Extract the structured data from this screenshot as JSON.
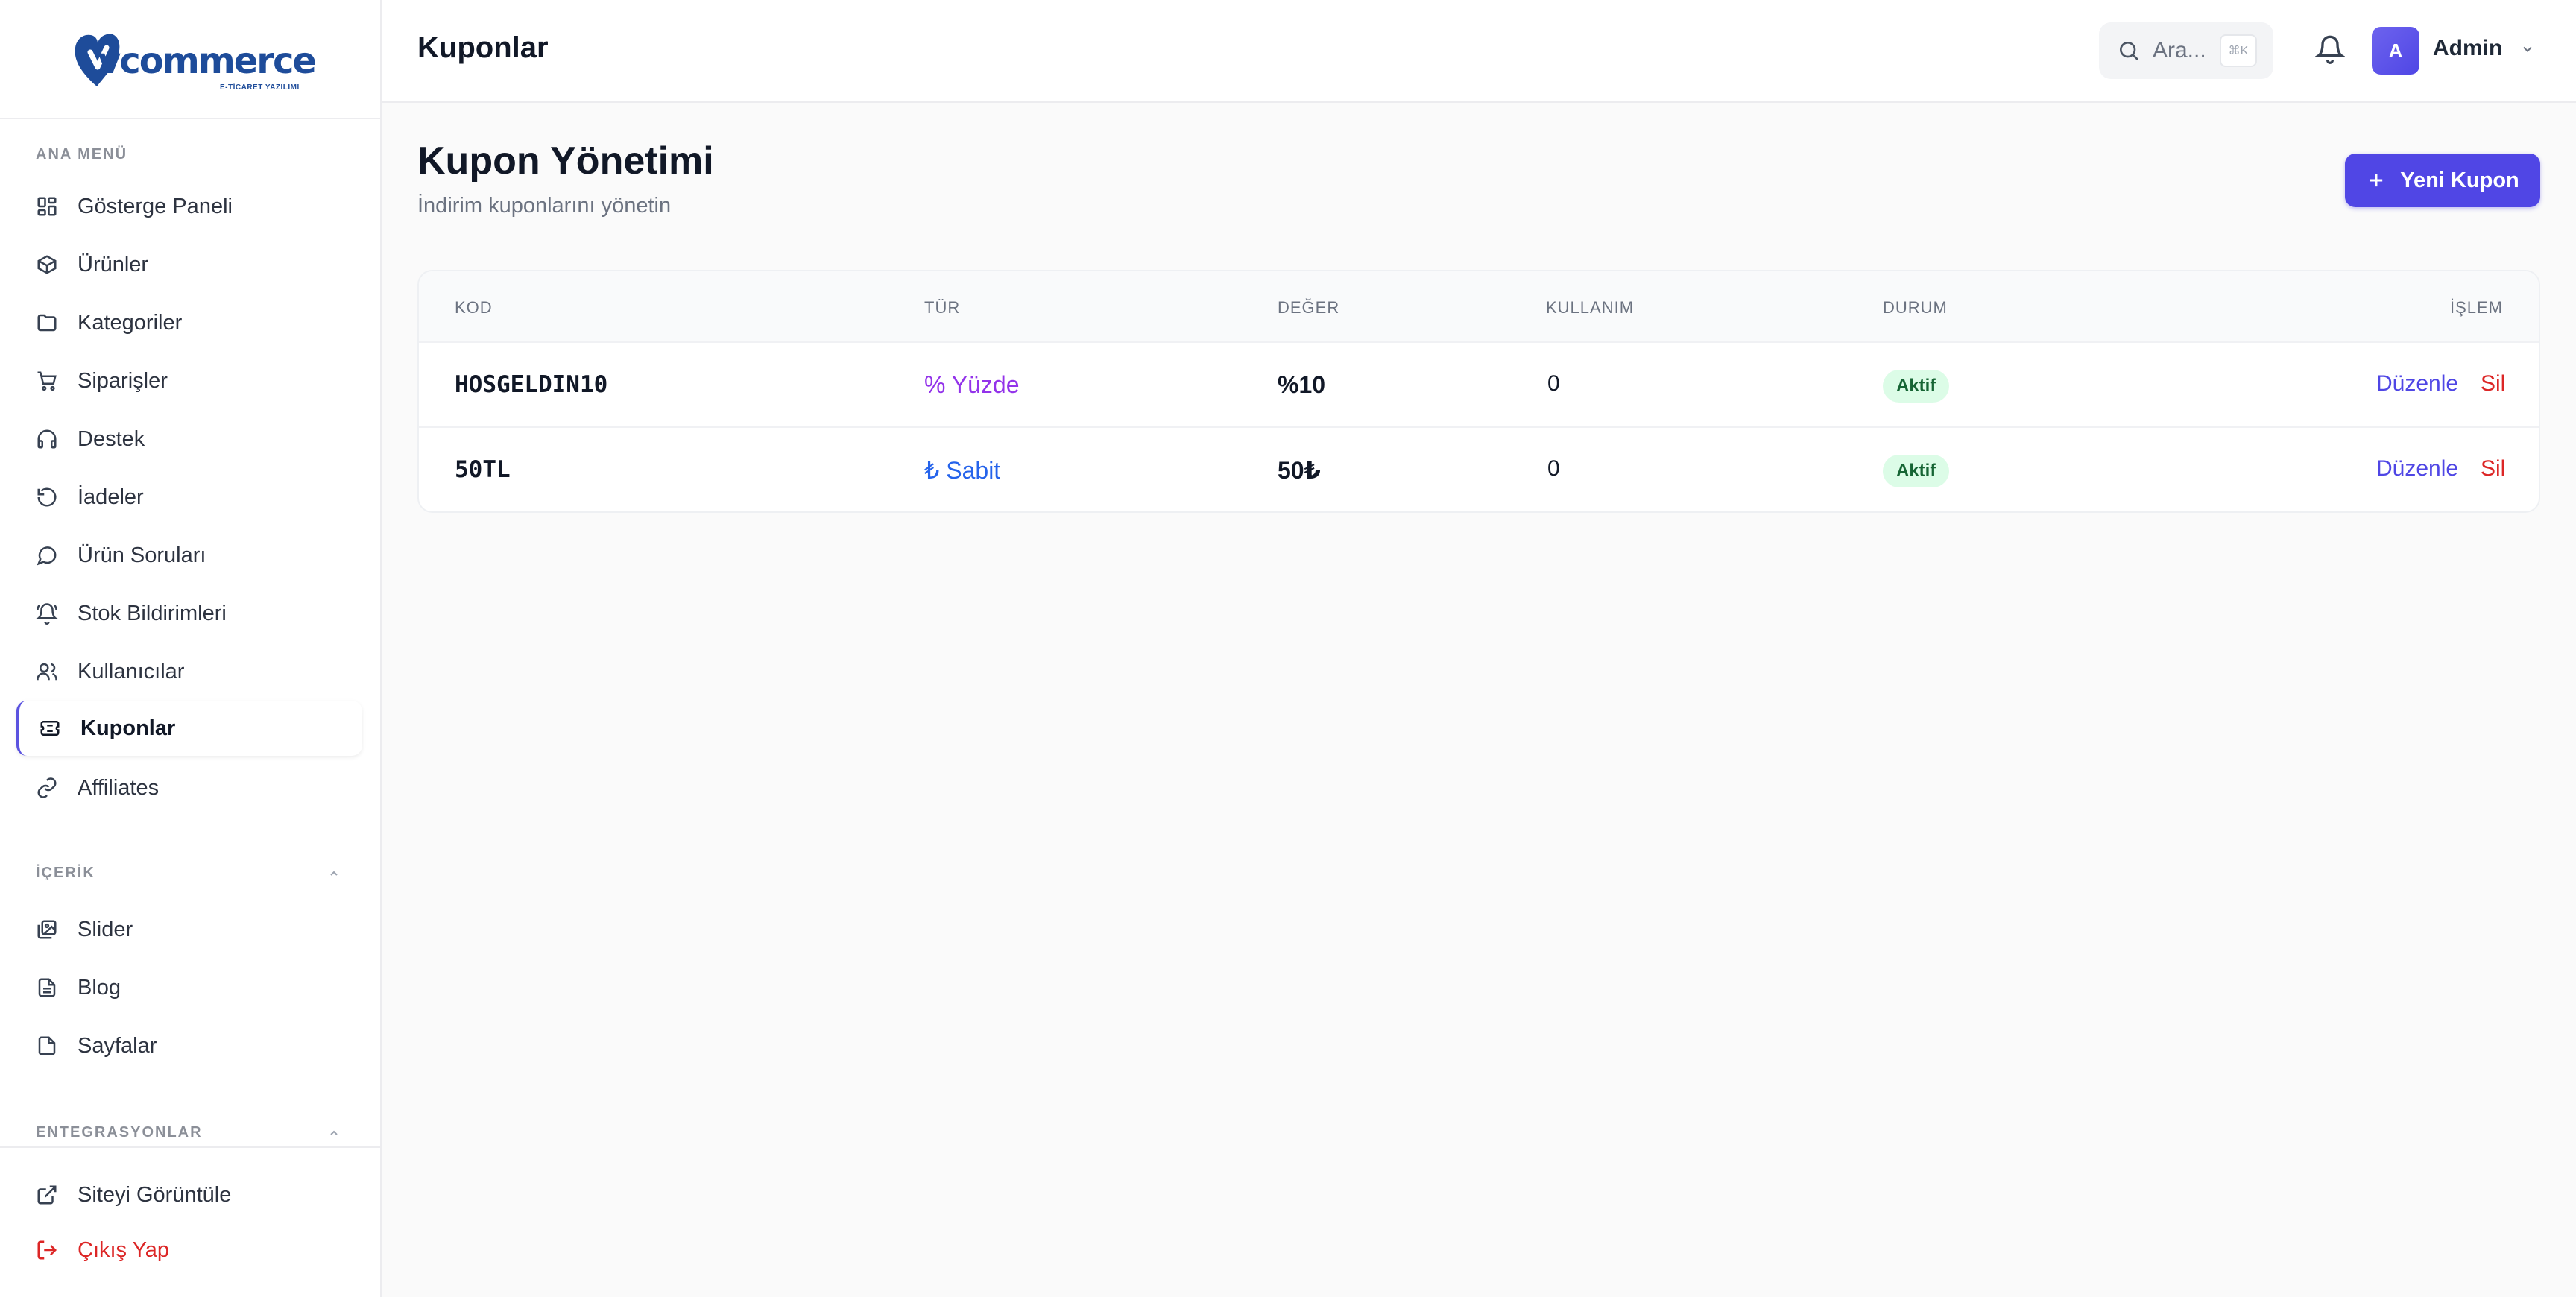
{
  "brand": {
    "logo_text": "vcommerce",
    "logo_sub": "E-TİCARET YAZILIMI"
  },
  "sidebar": {
    "sections": [
      {
        "label": "ANA MENÜ"
      },
      {
        "label": "İÇERİK"
      },
      {
        "label": "ENTEGRASYONLAR"
      }
    ],
    "main_items": [
      {
        "label": "Gösterge Paneli",
        "icon": "dashboard-icon"
      },
      {
        "label": "Ürünler",
        "icon": "box-icon"
      },
      {
        "label": "Kategoriler",
        "icon": "folder-icon"
      },
      {
        "label": "Siparişler",
        "icon": "cart-icon"
      },
      {
        "label": "Destek",
        "icon": "headphones-icon"
      },
      {
        "label": "İadeler",
        "icon": "refresh-icon"
      },
      {
        "label": "Ürün Soruları",
        "icon": "message-icon"
      },
      {
        "label": "Stok Bildirimleri",
        "icon": "bell-ring-icon"
      },
      {
        "label": "Kullanıcılar",
        "icon": "users-icon"
      },
      {
        "label": "Kuponlar",
        "icon": "ticket-icon",
        "active": true
      },
      {
        "label": "Affiliates",
        "icon": "link-icon"
      }
    ],
    "content_items": [
      {
        "label": "Slider",
        "icon": "images-icon"
      },
      {
        "label": "Blog",
        "icon": "file-text-icon"
      },
      {
        "label": "Sayfalar",
        "icon": "file-icon"
      }
    ],
    "footer_items": [
      {
        "label": "Siteyi Görüntüle",
        "icon": "external-link-icon"
      },
      {
        "label": "Çıkış Yap",
        "icon": "logout-icon"
      }
    ]
  },
  "header": {
    "title": "Kuponlar",
    "search_placeholder": "Ara...",
    "search_shortcut": "⌘K",
    "user_initial": "A",
    "user_name": "Admin"
  },
  "page": {
    "title": "Kupon Yönetimi",
    "subtitle": "İndirim kuponlarını yönetin",
    "new_button": "Yeni Kupon"
  },
  "table": {
    "columns": [
      "KOD",
      "TÜR",
      "DEĞER",
      "KULLANIM",
      "DURUM",
      "İŞLEM"
    ],
    "rows": [
      {
        "code": "HOSGELDIN10",
        "type": "% Yüzde",
        "value": "%10",
        "usage": "0",
        "status": "Aktif",
        "edit": "Düzenle",
        "delete": "Sil"
      },
      {
        "code": "50TL",
        "type": "₺ Sabit",
        "value": "50₺",
        "usage": "0",
        "status": "Aktif",
        "edit": "Düzenle",
        "delete": "Sil"
      }
    ]
  },
  "colors": {
    "accent": "#5046e5",
    "danger": "#dc2626",
    "success_bg": "#dcfce7",
    "success_text": "#166534",
    "type_percent": "#9333ea",
    "type_fixed": "#2563eb"
  }
}
